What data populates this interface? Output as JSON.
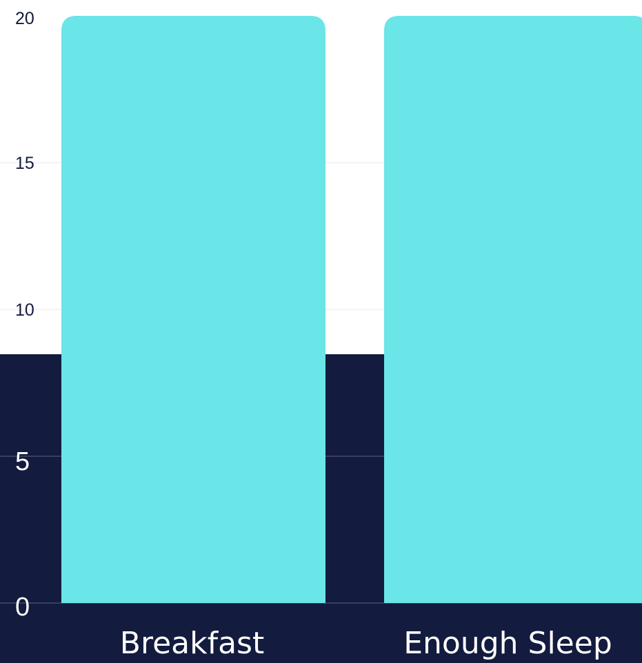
{
  "chart_data": {
    "type": "bar",
    "categories": [
      "Breakfast",
      "Enough Sleep"
    ],
    "values": [
      20,
      20
    ],
    "title": "",
    "xlabel": "",
    "ylabel": "",
    "ylim": [
      0,
      20
    ],
    "yticks": [
      "0",
      "5",
      "10",
      "15",
      "20"
    ],
    "grid": true,
    "legend": "none"
  },
  "colors": {
    "bar": "#6ae5e8",
    "dark_panel": "#131b3e",
    "tick_text_light": "#131b3e",
    "tick_text_dark": "#ffffff",
    "category_text": "#ffffff",
    "gridline": "#5b6282",
    "background": "#ffffff"
  }
}
